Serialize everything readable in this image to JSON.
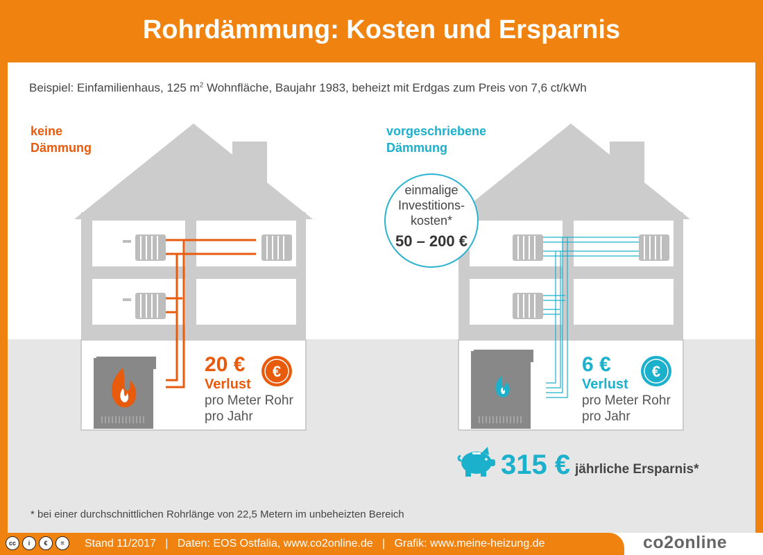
{
  "title": "Rohrdämmung: Kosten und Ersparnis",
  "subtitle": {
    "before": "Beispiel: Einfamilienhaus, 125 m",
    "sup": "2",
    "after": " Wohnfläche, Baujahr 1983, beheizt mit Erdgas zum Preis von 7,6 ct/kWh"
  },
  "left": {
    "label_line1": "keine",
    "label_line2": "Dämmung",
    "amount": "20 €",
    "loss": "Verlust",
    "line1": "pro Meter Rohr",
    "line2": "pro Jahr",
    "value_eur_per_m_year": 20
  },
  "right": {
    "label_line1": "vorgeschriebene",
    "label_line2": "Dämmung",
    "amount": "6 €",
    "loss": "Verlust",
    "line1": "pro Meter Rohr",
    "line2": "pro Jahr",
    "value_eur_per_m_year": 6
  },
  "invest": {
    "line1": "einmalige",
    "line2": "Investitions-",
    "line3": "kosten*",
    "amount": "50 – 200 €"
  },
  "savings": {
    "amount": "315 €",
    "text": "jährliche Ersparnis*"
  },
  "footnote": "* bei einer durchschnittlichen Rohrlänge von 22,5 Metern im unbeheizten Bereich",
  "footer": {
    "text": "Stand 11/2017   |   Daten: EOS Ostfalia, www.co2online.de   |   Grafik: www.meine-heizung.de",
    "logo": "co2online"
  },
  "colors": {
    "orange": "#f0820f",
    "orange_dark": "#e85a0c",
    "blue": "#1bb0cc",
    "house_gray": "#cccccc",
    "ground_gray": "#e6e6e6"
  },
  "icons": [
    "flame-icon",
    "euro-coin-icon",
    "piggy-bank-icon",
    "radiator-icon",
    "creative-commons-icon"
  ]
}
